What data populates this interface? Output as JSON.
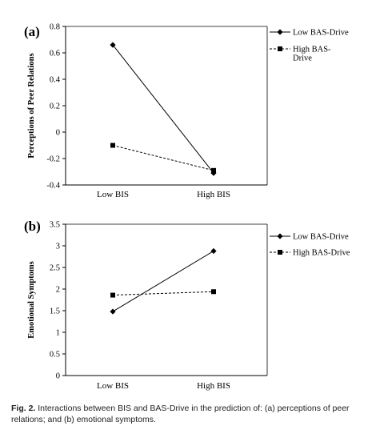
{
  "chart_data": [
    {
      "type": "line",
      "panel_label": "(a)",
      "ylabel": "Perceptions of Peer Relations",
      "xlabel": "",
      "categories": [
        "Low BIS",
        "High BIS"
      ],
      "ylim": [
        -0.4,
        0.8
      ],
      "yticks": [
        "0.8",
        "0.6",
        "0.4",
        "0.2",
        "0",
        "-0.2",
        "-0.4"
      ],
      "ytick_values": [
        0.8,
        0.6,
        0.4,
        0.2,
        0,
        -0.2,
        -0.4
      ],
      "grid": false,
      "legend_position": "top-right",
      "series": [
        {
          "name": "Low BAS-Drive",
          "values": [
            0.66,
            -0.31
          ],
          "marker": "diamond",
          "line": "solid",
          "legend_lines": [
            "Low BAS-Drive"
          ]
        },
        {
          "name": "High BAS-Drive",
          "values": [
            -0.1,
            -0.29
          ],
          "marker": "square",
          "line": "dashed",
          "legend_lines": [
            "High BAS-",
            "Drive"
          ]
        }
      ]
    },
    {
      "type": "line",
      "panel_label": "(b)",
      "ylabel": "Emotional Symptoms",
      "xlabel": "",
      "categories": [
        "Low BIS",
        "High BIS"
      ],
      "ylim": [
        0,
        3.5
      ],
      "yticks": [
        "3.5",
        "3",
        "2.5",
        "2",
        "1.5",
        "1",
        "0.5",
        "0"
      ],
      "ytick_values": [
        3.5,
        3,
        2.5,
        2,
        1.5,
        1,
        0.5,
        0
      ],
      "grid": false,
      "legend_position": "top-right",
      "series": [
        {
          "name": "Low BAS-Drive",
          "values": [
            1.48,
            2.88
          ],
          "marker": "diamond",
          "line": "solid",
          "legend_lines": [
            "Low BAS-Drive"
          ]
        },
        {
          "name": "High BAS-Drive",
          "values": [
            1.86,
            1.94
          ],
          "marker": "square",
          "line": "dashed",
          "legend_lines": [
            "High BAS-Drive"
          ]
        }
      ]
    }
  ],
  "caption": {
    "fig_label": "Fig. 2.",
    "text": " Interactions between BIS and BAS-Drive in the prediction of: (a) perceptions of peer relations; and (b) emotional symptoms."
  }
}
